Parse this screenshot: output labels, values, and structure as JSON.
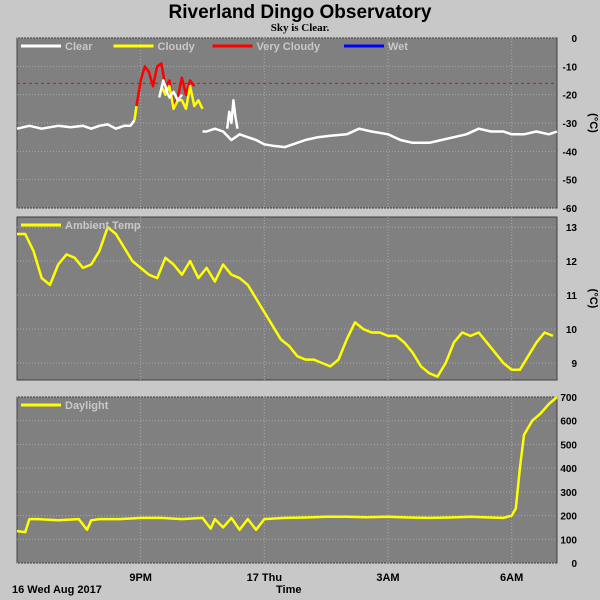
{
  "header": {
    "title": "Riverland Dingo Observatory",
    "subtitle": "Sky is Clear."
  },
  "footer": {
    "date": "16 Wed Aug 2017",
    "xlabel": "Time"
  },
  "colors": {
    "panel_bg": "#808080",
    "page_bg": "#c8c8c8",
    "clear": "#ffffff",
    "cloudy": "#ffff00",
    "very_cloudy": "#ff0000",
    "wet": "#0000ff",
    "threshold": "#ff0000"
  },
  "chart_data": [
    {
      "type": "line",
      "name": "sky",
      "legend": [
        {
          "label": "Clear",
          "color": "#ffffff"
        },
        {
          "label": "Cloudy",
          "color": "#ffff00"
        },
        {
          "label": "Very Cloudy",
          "color": "#ff0000"
        },
        {
          "label": "Wet",
          "color": "#0000ff"
        }
      ],
      "ylabel": "(°C)",
      "ylim": [
        -60,
        0
      ],
      "yticks": [
        0,
        -10,
        -20,
        -30,
        -40,
        -50,
        -60
      ],
      "x_ticks": [
        {
          "t": 3,
          "label": "9PM"
        },
        {
          "t": 6,
          "label": "17 Thu"
        },
        {
          "t": 9,
          "label": "3AM"
        },
        {
          "t": 12,
          "label": "6AM"
        }
      ],
      "xlim": [
        0,
        13.1
      ],
      "threshold": -16,
      "grid": true,
      "series": [
        {
          "color": "#ffffff",
          "x": [
            0,
            0.3,
            0.6,
            1,
            1.3,
            1.6,
            1.8,
            2,
            2.2,
            2.4,
            2.6,
            2.75,
            2.85
          ],
          "y": [
            -32,
            -31,
            -32,
            -31,
            -31.5,
            -31,
            -32,
            -31,
            -30.5,
            -32,
            -31,
            -31,
            -29
          ]
        },
        {
          "color": "#ffff00",
          "x": [
            2.85,
            2.9
          ],
          "y": [
            -29,
            -24
          ]
        },
        {
          "color": "#ff0000",
          "x": [
            2.9,
            3,
            3.1,
            3.2,
            3.3,
            3.4,
            3.5,
            3.6,
            3.7,
            3.8,
            3.9,
            4,
            4.1,
            4.2,
            4.3
          ],
          "y": [
            -24,
            -15,
            -10,
            -12,
            -17,
            -10,
            -9,
            -17,
            -15,
            -24,
            -21,
            -14,
            -20,
            -15,
            -17
          ]
        },
        {
          "color": "#ffff00",
          "x": [
            3.5,
            3.6,
            3.7,
            3.8,
            3.9,
            4,
            4.1,
            4.2,
            4.3,
            4.4,
            4.5
          ],
          "y": [
            -17,
            -20,
            -17,
            -25,
            -22,
            -22,
            -25,
            -17,
            -24,
            -22,
            -25
          ]
        },
        {
          "color": "#ffffff",
          "x": [
            4.5,
            4.6,
            4.8,
            5,
            5.2,
            5.4,
            5.6,
            5.8,
            6,
            6.2,
            6.5,
            6.8,
            7,
            7.3,
            7.6,
            8,
            8.3,
            8.6,
            9,
            9.3,
            9.6,
            10,
            10.3,
            10.6,
            10.9,
            11.2,
            11.5,
            11.8,
            12,
            12.3,
            12.6,
            12.9,
            13.1
          ],
          "y": [
            -33,
            -33,
            -32,
            -33,
            -36,
            -34,
            -35,
            -36,
            -37.5,
            -38,
            -38.5,
            -37,
            -36,
            -35,
            -34.5,
            -34,
            -32,
            -33,
            -34,
            -36,
            -37,
            -37,
            -36,
            -35,
            -34,
            -32,
            -33,
            -33,
            -34,
            -34,
            -33,
            -34,
            -33
          ]
        },
        {
          "color": "#ffffff",
          "x": [
            3.6,
            3.7,
            3.8,
            3.9,
            4
          ],
          "y": [
            -18,
            -21,
            -19,
            -22,
            -20
          ]
        },
        {
          "color": "#ffffff",
          "x": [
            3.45,
            3.55,
            3.65
          ],
          "y": [
            -21,
            -15,
            -19
          ]
        },
        {
          "color": "#ffffff",
          "x": [
            5.1,
            5.15,
            5.2,
            5.25,
            5.3,
            5.35
          ],
          "y": [
            -32,
            -26,
            -30,
            -22,
            -28,
            -32
          ]
        }
      ]
    },
    {
      "type": "line",
      "name": "ambient",
      "legend": [
        {
          "label": "Ambient Temp",
          "color": "#ffff00"
        }
      ],
      "ylabel": "(°C)",
      "ylim": [
        8.5,
        13.3
      ],
      "yticks": [
        13,
        12,
        11,
        10,
        9
      ],
      "xlim": [
        0,
        13.1
      ],
      "x_ticks": [
        {
          "t": 3,
          "label": "9PM"
        },
        {
          "t": 6,
          "label": "17 Thu"
        },
        {
          "t": 9,
          "label": "3AM"
        },
        {
          "t": 12,
          "label": "6AM"
        }
      ],
      "grid": true,
      "series": [
        {
          "color": "#ffff00",
          "x": [
            0,
            0.2,
            0.4,
            0.6,
            0.8,
            1,
            1.2,
            1.4,
            1.6,
            1.8,
            2,
            2.2,
            2.4,
            2.6,
            2.8,
            3,
            3.2,
            3.4,
            3.6,
            3.8,
            4,
            4.2,
            4.4,
            4.6,
            4.8,
            5,
            5.2,
            5.4,
            5.6,
            5.8,
            6,
            6.2,
            6.4,
            6.6,
            6.8,
            7,
            7.2,
            7.4,
            7.6,
            7.8,
            8,
            8.2,
            8.4,
            8.6,
            8.8,
            9,
            9.2,
            9.4,
            9.6,
            9.8,
            10,
            10.2,
            10.4,
            10.6,
            10.8,
            11,
            11.2,
            11.4,
            11.6,
            11.8,
            12,
            12.2,
            12.4,
            12.6,
            12.8,
            13
          ],
          "y": [
            12.8,
            12.8,
            12.3,
            11.5,
            11.3,
            11.9,
            12.2,
            12.1,
            11.8,
            11.9,
            12.3,
            13,
            12.8,
            12.4,
            12.0,
            11.8,
            11.6,
            11.5,
            12.1,
            11.9,
            11.6,
            12,
            11.5,
            11.8,
            11.4,
            11.9,
            11.6,
            11.5,
            11.3,
            10.9,
            10.5,
            10.1,
            9.7,
            9.5,
            9.2,
            9.1,
            9.1,
            9.0,
            8.9,
            9.1,
            9.7,
            10.2,
            10.0,
            9.9,
            9.9,
            9.8,
            9.8,
            9.6,
            9.3,
            8.9,
            8.7,
            8.6,
            9.0,
            9.6,
            9.9,
            9.8,
            9.9,
            9.6,
            9.3,
            9.0,
            8.8,
            8.8,
            9.2,
            9.6,
            9.9,
            9.8
          ]
        }
      ]
    },
    {
      "type": "line",
      "name": "daylight",
      "legend": [
        {
          "label": "Daylight",
          "color": "#ffff00"
        }
      ],
      "ylim": [
        0,
        700
      ],
      "yticks": [
        700,
        600,
        500,
        400,
        300,
        200,
        100,
        0
      ],
      "xlim": [
        0,
        13.1
      ],
      "x_ticks": [
        {
          "t": 3,
          "label": "9PM"
        },
        {
          "t": 6,
          "label": "17 Thu"
        },
        {
          "t": 9,
          "label": "3AM"
        },
        {
          "t": 12,
          "label": "6AM"
        }
      ],
      "grid": true,
      "series": [
        {
          "color": "#ffff00",
          "x": [
            0,
            0.2,
            0.3,
            0.5,
            1,
            1.5,
            1.7,
            1.8,
            2,
            2.5,
            3,
            3.5,
            4,
            4.5,
            4.7,
            4.8,
            5,
            5.2,
            5.4,
            5.6,
            5.8,
            6,
            6.5,
            7,
            7.5,
            8,
            8.5,
            9,
            9.5,
            10,
            10.5,
            11,
            11.5,
            11.8,
            12,
            12.1,
            12.2,
            12.3,
            12.5,
            12.7,
            12.9,
            13.1
          ],
          "y": [
            135,
            130,
            185,
            185,
            180,
            185,
            140,
            180,
            185,
            185,
            190,
            190,
            185,
            190,
            145,
            185,
            150,
            190,
            140,
            185,
            140,
            185,
            190,
            192,
            195,
            195,
            193,
            195,
            192,
            190,
            192,
            195,
            192,
            190,
            200,
            230,
            400,
            540,
            600,
            630,
            670,
            700
          ]
        }
      ]
    }
  ]
}
